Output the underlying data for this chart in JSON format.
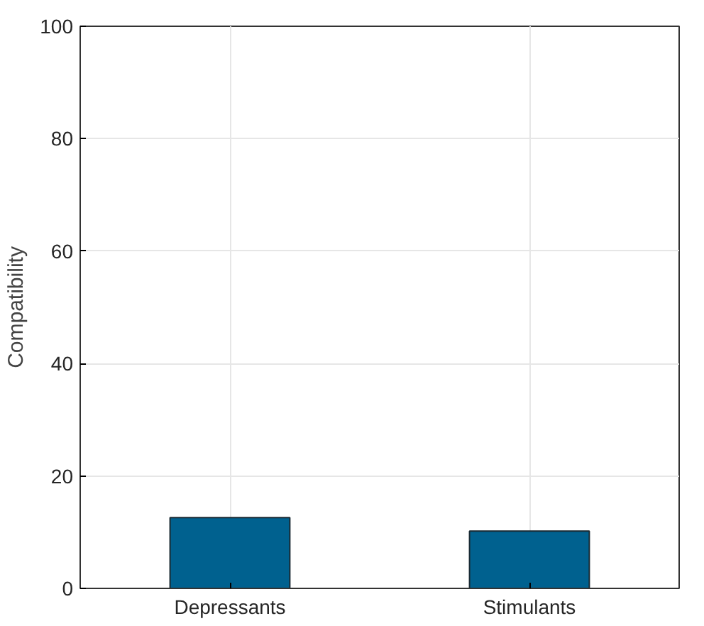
{
  "chart_data": {
    "type": "bar",
    "ylabel": "Compatibility",
    "categories": [
      "Depressants",
      "Stimulants"
    ],
    "values": [
      12.6,
      10.2
    ],
    "color": "#00618f",
    "ylim": [
      0,
      100
    ],
    "yticks": [
      0,
      20,
      40,
      60,
      80,
      100
    ],
    "grid": true
  }
}
